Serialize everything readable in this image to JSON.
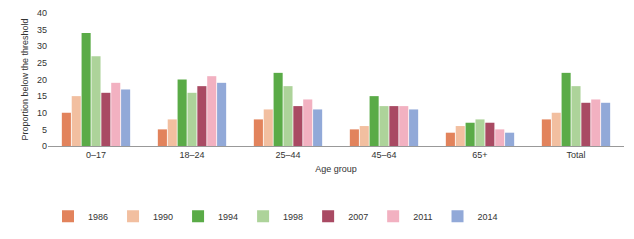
{
  "chart_data": {
    "type": "bar",
    "x_label": "Age group",
    "y_label": "Proportion below the threshold",
    "categories": [
      "0–17",
      "18–24",
      "25–44",
      "45–64",
      "65+",
      "Total"
    ],
    "series": [
      {
        "name": "1986",
        "color": "#e2835c",
        "values": [
          10,
          5,
          8,
          5,
          4,
          8
        ]
      },
      {
        "name": "1990",
        "color": "#f2bfa0",
        "values": [
          15,
          8,
          11,
          6,
          6,
          10
        ]
      },
      {
        "name": "1994",
        "color": "#5aab47",
        "values": [
          34,
          20,
          22,
          15,
          7,
          22
        ]
      },
      {
        "name": "1998",
        "color": "#add39a",
        "values": [
          27,
          16,
          18,
          12,
          8,
          18
        ]
      },
      {
        "name": "2007",
        "color": "#a94a63",
        "values": [
          16,
          18,
          12,
          12,
          7,
          13
        ]
      },
      {
        "name": "2011",
        "color": "#f2b1c1",
        "values": [
          19,
          21,
          14,
          12,
          5,
          14
        ]
      },
      {
        "name": "2014",
        "color": "#92a9d8",
        "values": [
          17,
          19,
          11,
          11,
          4,
          13
        ]
      }
    ],
    "ylim": [
      0,
      40
    ],
    "yticks": [
      0,
      5,
      10,
      15,
      20,
      25,
      30,
      35,
      40
    ],
    "grid": false,
    "legend": "bottom"
  }
}
